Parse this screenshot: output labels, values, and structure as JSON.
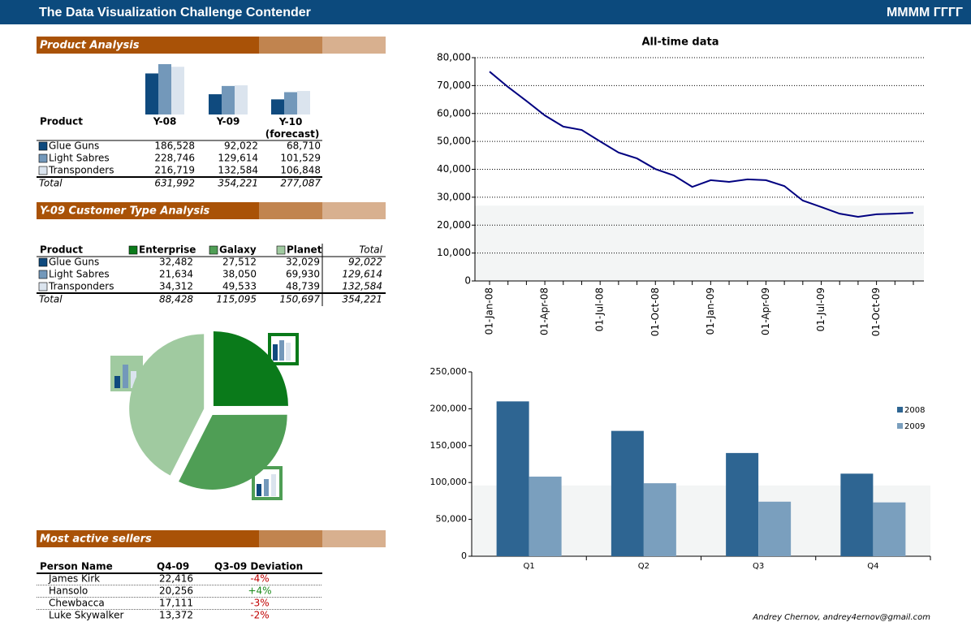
{
  "header": {
    "title": "The Data Visualization Challenge Contender",
    "date": "MMMM ГГГГ"
  },
  "product_colors": [
    "#0f4a7e",
    "#7398ba",
    "#dbe4ee"
  ],
  "product_analysis": {
    "title": "Product Analysis",
    "columns": [
      "Product",
      "Y-08",
      "Y-09",
      "Y-10 (forecast)"
    ],
    "rows": [
      {
        "label": "Glue Guns",
        "values": [
          "186,528",
          "92,022",
          "68,710"
        ]
      },
      {
        "label": "Light Sabres",
        "values": [
          "228,746",
          "129,614",
          "101,529"
        ]
      },
      {
        "label": "Transponders",
        "values": [
          "216,719",
          "132,584",
          "106,848"
        ]
      }
    ],
    "total": {
      "label": "Total",
      "values": [
        "631,992",
        "354,221",
        "277,087"
      ]
    }
  },
  "customer_analysis": {
    "title": "Y-09 Customer Type Analysis",
    "columns": [
      "Product",
      "Enterprise",
      "Galaxy",
      "Planet",
      "Total"
    ],
    "segment_colors": [
      "#0a7a1a",
      "#4f9e55",
      "#a0caa0"
    ],
    "rows": [
      {
        "label": "Glue Guns",
        "values": [
          "32,482",
          "27,512",
          "32,029",
          "92,022"
        ]
      },
      {
        "label": "Light Sabres",
        "values": [
          "21,634",
          "38,050",
          "69,930",
          "129,614"
        ]
      },
      {
        "label": "Transponders",
        "values": [
          "34,312",
          "49,533",
          "48,739",
          "132,584"
        ]
      }
    ],
    "total": {
      "label": "Total",
      "values": [
        "88,428",
        "115,095",
        "150,697",
        "354,221"
      ]
    }
  },
  "sellers": {
    "title": "Most active sellers",
    "columns": [
      "Person Name",
      "Q4-09",
      "Q3-09 Deviation"
    ],
    "rows": [
      [
        "James Kirk",
        "22,416",
        "-4%"
      ],
      [
        "Hansolo",
        "20,256",
        "+4%"
      ],
      [
        "Chewbacca",
        "17,111",
        "-3%"
      ],
      [
        "Luke Skywalker",
        "13,372",
        "-2%"
      ]
    ]
  },
  "chart_data": [
    {
      "type": "line",
      "title": "All-time data",
      "x": [
        "01-Jan-08",
        "01-Feb-08",
        "01-Mar-08",
        "01-Apr-08",
        "01-May-08",
        "01-Jun-08",
        "01-Jul-08",
        "01-Aug-08",
        "01-Sep-08",
        "01-Oct-08",
        "01-Nov-08",
        "01-Dec-08",
        "01-Jan-09",
        "01-Feb-09",
        "01-Mar-09",
        "01-Apr-09",
        "01-May-09",
        "01-Jun-09",
        "01-Jul-09",
        "01-Aug-09",
        "01-Sep-09",
        "01-Oct-09",
        "01-Nov-09",
        "01-Dec-09"
      ],
      "xticks": [
        "01-Jan-08",
        "01-Apr-08",
        "01-Jul-08",
        "01-Oct-08",
        "01-Jan-09",
        "01-Apr-09",
        "01-Jul-09",
        "01-Oct-09"
      ],
      "values": [
        75000,
        69500,
        64500,
        59300,
        55300,
        54100,
        50000,
        46000,
        43900,
        40100,
        37800,
        33700,
        36100,
        35500,
        36400,
        36100,
        34000,
        28800,
        26500,
        24100,
        23000,
        23900,
        24100,
        24400
      ],
      "color": "#000080",
      "ylim": [
        0,
        80000
      ],
      "yticks": [
        0,
        {
          "value": 10000,
          "label": "10,000"
        },
        {
          "value": 20000,
          "label": "20,000"
        },
        {
          "value": 30000,
          "label": "30,000"
        },
        {
          "value": 40000,
          "label": "40,000"
        },
        {
          "value": 50000,
          "label": "50,000"
        },
        {
          "value": 60000,
          "label": "60,000"
        },
        {
          "value": 70000,
          "label": "70,000"
        },
        {
          "value": 80000,
          "label": "80,000"
        }
      ],
      "grid": true,
      "band": [
        0,
        27000
      ],
      "band_color": "#f3f5f5"
    },
    {
      "type": "bar",
      "categories": [
        "Q1",
        "Q2",
        "Q3",
        "Q4"
      ],
      "series": [
        {
          "name": "2008",
          "color": "#2e6592",
          "values": [
            210000,
            170000,
            140000,
            112000
          ]
        },
        {
          "name": "2009",
          "color": "#7a9fbe",
          "values": [
            108000,
            99000,
            74000,
            73000
          ]
        }
      ],
      "ylim": [
        0,
        250000
      ],
      "yticks": [
        0,
        {
          "value": 50000,
          "label": "50,000"
        },
        {
          "value": 100000,
          "label": "100,000"
        },
        {
          "value": 150000,
          "label": "150,000"
        },
        {
          "value": 200000,
          "label": "200,000"
        },
        {
          "value": 250000,
          "label": "250,000"
        }
      ],
      "grid": false,
      "legend": "right",
      "band": [
        0,
        96000
      ],
      "band_color": "#f3f5f5"
    }
  ],
  "footer": "Andrey Chernov, andrey4ernov@gmail.com"
}
